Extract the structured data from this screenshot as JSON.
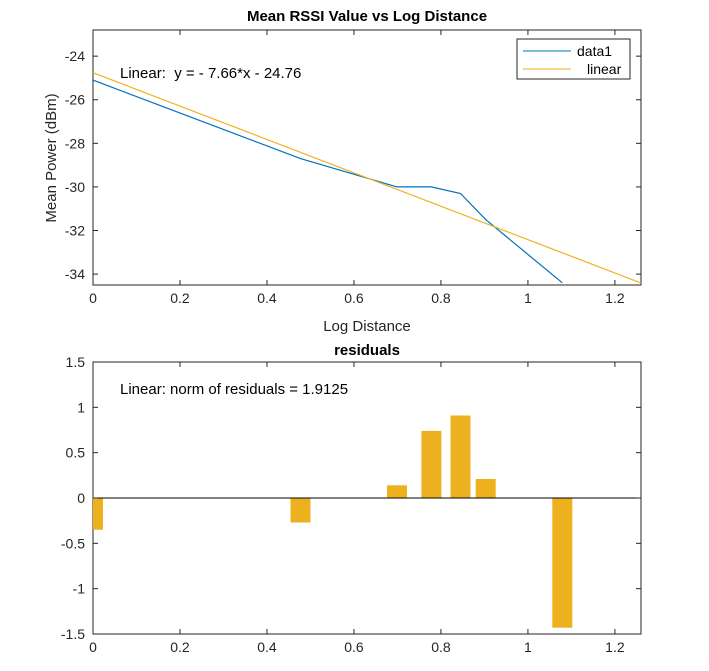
{
  "chart_data": [
    {
      "type": "line",
      "title": "Mean RSSI Value vs Log Distance",
      "xlabel": "Log Distance",
      "ylabel": "Mean Power (dBm)",
      "xlim": [
        0,
        1.26
      ],
      "ylim": [
        -34.5,
        -22.8
      ],
      "xticks": [
        0,
        0.2,
        0.4,
        0.6,
        0.8,
        1,
        1.2
      ],
      "xtick_labels": [
        "0",
        "0.2",
        "0.4",
        "0.6",
        "0.8",
        "1",
        "1.2"
      ],
      "yticks": [
        -24,
        -26,
        -28,
        -30,
        -32,
        -34
      ],
      "ytick_labels": [
        "-24",
        "-26",
        "-28",
        "-30",
        "-32",
        "-34"
      ],
      "grid": false,
      "legend": "top-right",
      "annotation": "Linear:  y = - 7.66*x - 24.76",
      "series": [
        {
          "name": "data1",
          "color": "#0072bd",
          "x": [
            0,
            0.477,
            0.699,
            0.778,
            0.845,
            0.903,
            1.079
          ],
          "y": [
            -25.1,
            -28.7,
            -30.0,
            -30.0,
            -30.3,
            -31.5,
            -34.4
          ]
        },
        {
          "name": "linear",
          "color": "#edb120",
          "x": [
            0,
            1.26
          ],
          "y": [
            -24.76,
            -34.41
          ]
        }
      ]
    },
    {
      "type": "bar",
      "title": "residuals",
      "xlim": [
        0,
        1.26
      ],
      "ylim": [
        -1.5,
        1.5
      ],
      "xticks": [
        0,
        0.2,
        0.4,
        0.6,
        0.8,
        1,
        1.2
      ],
      "xtick_labels": [
        "0",
        "0.2",
        "0.4",
        "0.6",
        "0.8",
        "1",
        "1.2"
      ],
      "yticks": [
        1.5,
        1,
        0.5,
        0,
        -0.5,
        -1,
        -1.5
      ],
      "ytick_labels": [
        "1.5",
        "1",
        "0.5",
        "0",
        "-0.5",
        "-1",
        "-1.5"
      ],
      "grid": false,
      "annotation": "Linear: norm of residuals = 1.9125",
      "bar_color": "#edb120",
      "x": [
        0,
        0.477,
        0.699,
        0.778,
        0.845,
        0.903,
        1.079
      ],
      "values": [
        -0.35,
        -0.27,
        0.14,
        0.74,
        0.91,
        0.21,
        -1.43
      ]
    }
  ]
}
